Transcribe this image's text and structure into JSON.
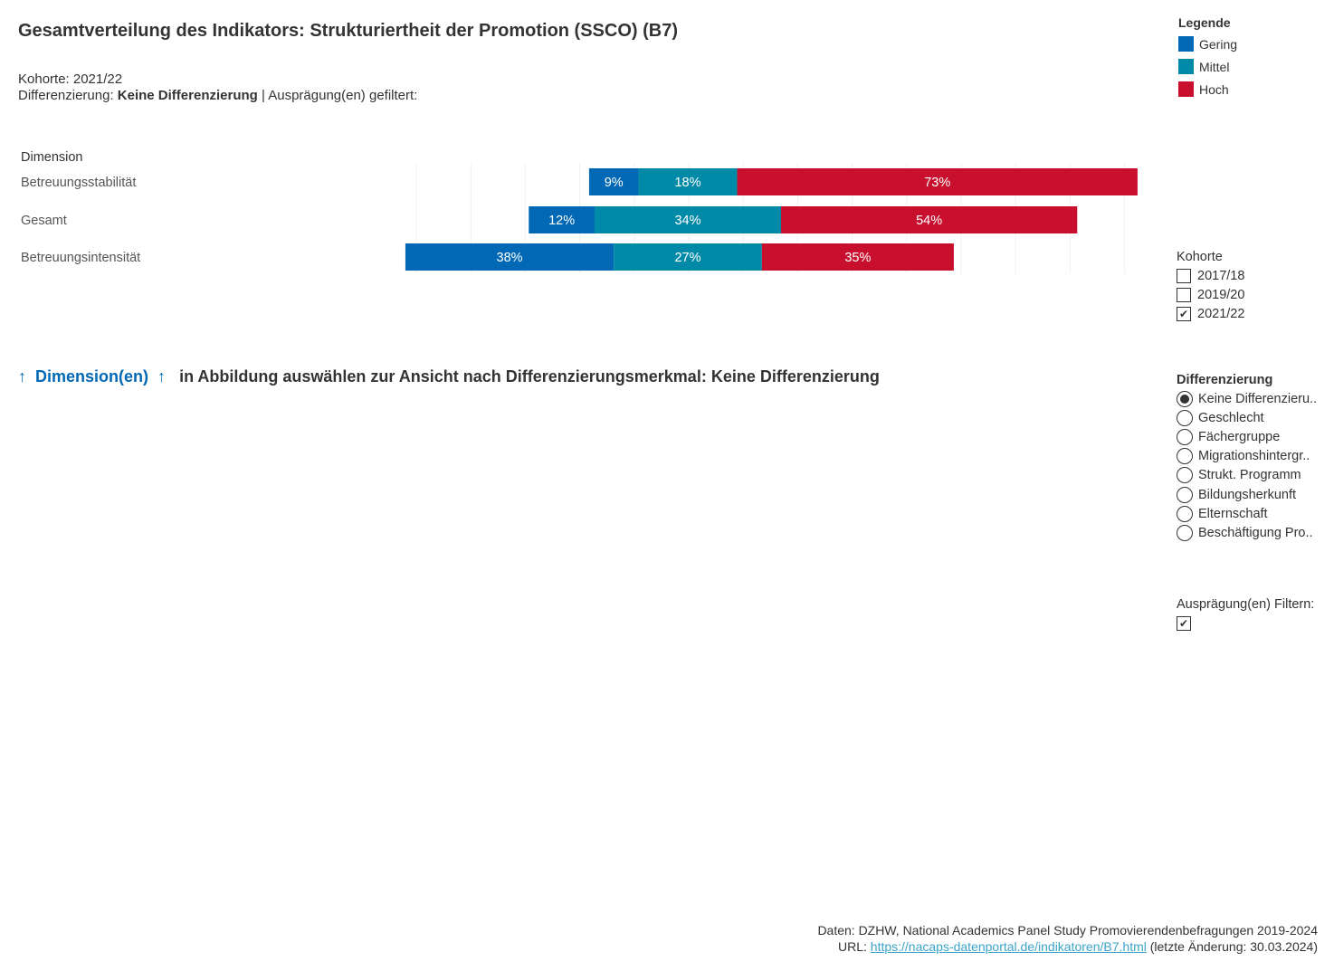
{
  "header": {
    "title": "Gesamtverteilung des Indikators: Strukturiertheit der Promotion (SSCO) (B7)",
    "cohort_line": "Kohorte: 2021/22",
    "diff_prefix": "Differenzierung: ",
    "diff_value": "Keine Differenzierung",
    "diff_suffix": " | Ausprägung(en) gefiltert:"
  },
  "legend": {
    "title": "Legende",
    "items": [
      {
        "label": "Gering",
        "color": "#0068b4"
      },
      {
        "label": "Mittel",
        "color": "#008aa8"
      },
      {
        "label": "Hoch",
        "color": "#c8102e"
      }
    ]
  },
  "chart_data": {
    "type": "bar",
    "orientation": "horizontal-stacked",
    "row_header": "Dimension",
    "categories": [
      "Betreuungsstabilität",
      "Gesamt",
      "Betreuungsintensität"
    ],
    "series": [
      {
        "name": "Gering",
        "color": "#0068b4",
        "values": [
          9,
          12,
          38
        ],
        "labels": [
          "9%",
          "12%",
          "38%"
        ]
      },
      {
        "name": "Mittel",
        "color": "#008aa8",
        "values": [
          18,
          34,
          27
        ],
        "labels": [
          "18%",
          "34%",
          "27%"
        ]
      },
      {
        "name": "Hoch",
        "color": "#c8102e",
        "values": [
          73,
          54,
          35
        ],
        "labels": [
          "73%",
          "54%",
          "35%"
        ]
      }
    ],
    "grid": true
  },
  "kohorte": {
    "title": "Kohorte",
    "options": [
      {
        "label": "2017/18",
        "checked": false
      },
      {
        "label": "2019/20",
        "checked": false
      },
      {
        "label": "2021/22",
        "checked": true
      }
    ]
  },
  "differenzierung": {
    "title": "Differenzierung",
    "options": [
      {
        "label": "Keine Differenzieru..",
        "selected": true
      },
      {
        "label": "Geschlecht",
        "selected": false
      },
      {
        "label": "Fächergruppe",
        "selected": false
      },
      {
        "label": "Migrationshintergr..",
        "selected": false
      },
      {
        "label": "Strukt. Programm",
        "selected": false
      },
      {
        "label": "Bildungsherkunft",
        "selected": false
      },
      {
        "label": "Elternschaft",
        "selected": false
      },
      {
        "label": "Beschäftigung Pro..",
        "selected": false
      }
    ]
  },
  "filter": {
    "title": "Ausprägung(en) Filtern:",
    "checked": true
  },
  "hint": {
    "arrow": "↑",
    "link": "Dimension(en)",
    "text": "in Abbildung auswählen zur Ansicht nach Differenzierungsmerkmal: Keine Differenzierung"
  },
  "footer": {
    "line1": "Daten: DZHW, National Academics Panel Study Promovierendenbefragungen 2019-2024",
    "url_prefix": "URL: ",
    "url": "https://nacaps-datenportal.de/indikatoren/B7.html",
    "url_suffix": " (letzte Änderung: 30.03.2024)"
  }
}
